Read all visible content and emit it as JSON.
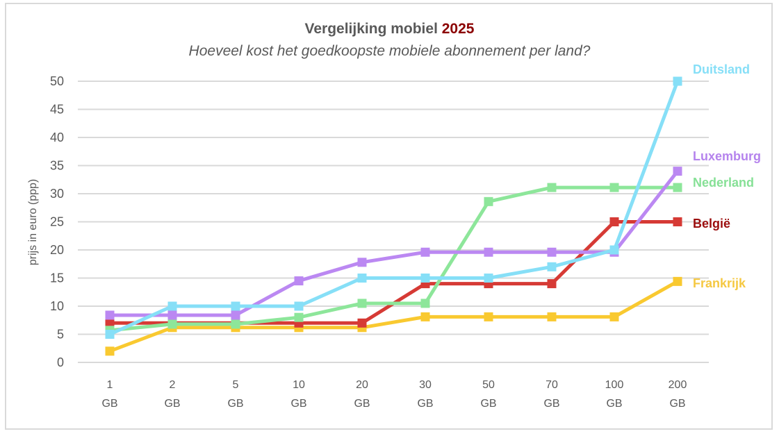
{
  "chart_data": {
    "type": "line",
    "title": "Vergelijking mobiel",
    "title_year": "2025",
    "subtitle": "Hoeveel kost het goedkoopste mobiele abonnement per land?",
    "xlabel": "",
    "ylabel": "prijs in euro (ppp)",
    "ylim": [
      0,
      50
    ],
    "yticks": [
      "0",
      "5",
      "10",
      "15",
      "20",
      "25",
      "30",
      "35",
      "40",
      "45",
      "50"
    ],
    "categories": [
      {
        "top": "1",
        "bottom": "GB"
      },
      {
        "top": "2",
        "bottom": "GB"
      },
      {
        "top": "5",
        "bottom": "GB"
      },
      {
        "top": "10",
        "bottom": "GB"
      },
      {
        "top": "20",
        "bottom": "GB"
      },
      {
        "top": "30",
        "bottom": "GB"
      },
      {
        "top": "50",
        "bottom": "GB"
      },
      {
        "top": "70",
        "bottom": "GB"
      },
      {
        "top": "100",
        "bottom": "GB"
      },
      {
        "top": "200",
        "bottom": "GB"
      }
    ],
    "grid": true,
    "legend": "inline-right",
    "series": [
      {
        "name": "Frankrijk",
        "color": "#f9c930",
        "label_color": "#f5c842",
        "values": [
          2,
          6.2,
          6.2,
          6.2,
          6.2,
          8.1,
          8.1,
          8.1,
          8.1,
          14.4
        ]
      },
      {
        "name": "België",
        "color": "#d63a35",
        "label_color": "#9b0d0d",
        "values": [
          7,
          7,
          7,
          7,
          7,
          14,
          14,
          14,
          25,
          25
        ]
      },
      {
        "name": "Nederland",
        "color": "#8de69a",
        "label_color": "#86e096",
        "values": [
          5.7,
          6.8,
          6.8,
          8,
          10.5,
          10.5,
          28.6,
          31.1,
          31.1,
          31.1
        ]
      },
      {
        "name": "Luxemburg",
        "color": "#bb88f2",
        "label_color": "#b583ed",
        "values": [
          8.4,
          8.4,
          8.4,
          14.5,
          17.8,
          19.6,
          19.6,
          19.6,
          19.6,
          34
        ]
      },
      {
        "name": "Duitsland",
        "color": "#86dff7",
        "label_color": "#86dff7",
        "values": [
          5,
          10,
          10,
          10,
          15,
          15,
          15,
          17,
          20,
          50
        ]
      }
    ]
  }
}
